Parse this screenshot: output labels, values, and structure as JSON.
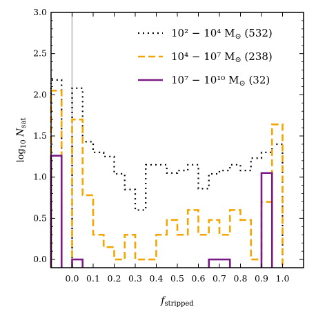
{
  "chart_data": {
    "type": "step-histogram",
    "xlabel": "f_stripped",
    "ylabel": "log10 N_sat",
    "xlim": [
      -0.1,
      1.1
    ],
    "ylim": [
      -0.1,
      3.0
    ],
    "x_ticks": [
      "0.0",
      "0.1",
      "0.2",
      "0.3",
      "0.4",
      "0.5",
      "0.6",
      "0.7",
      "0.8",
      "0.9",
      "1.0"
    ],
    "x_tick_values": [
      0.0,
      0.1,
      0.2,
      0.3,
      0.4,
      0.5,
      0.6,
      0.7,
      0.8,
      0.9,
      1.0
    ],
    "y_ticks": [
      "0.0",
      "0.5",
      "1.0",
      "1.5",
      "2.0",
      "2.5",
      "3.0"
    ],
    "y_tick_values": [
      0.0,
      0.5,
      1.0,
      1.5,
      2.0,
      2.5,
      3.0
    ],
    "reference_line_x": 0.0,
    "legend_position": "top-right",
    "bin_edges": [
      -0.1,
      -0.05,
      0.0,
      0.05,
      0.1,
      0.15,
      0.2,
      0.25,
      0.3,
      0.35,
      0.4,
      0.45,
      0.5,
      0.55,
      0.6,
      0.65,
      0.7,
      0.75,
      0.8,
      0.85,
      0.9,
      0.95,
      1.0,
      1.05
    ],
    "series": [
      {
        "name": "10^2 - 10^4 M_sun (532)",
        "legend_main": "10² − 10⁴ M",
        "legend_count": " (532)",
        "style": "dotted",
        "color": "#000000",
        "values": [
          2.18,
          null,
          2.08,
          1.43,
          1.3,
          1.25,
          1.04,
          0.85,
          0.6,
          1.15,
          1.15,
          1.05,
          1.08,
          1.15,
          0.86,
          1.04,
          1.08,
          1.15,
          1.08,
          1.23,
          1.3,
          1.4,
          null
        ]
      },
      {
        "name": "10^4 - 10^7 M_sun (238)",
        "legend_main": "10⁴ − 10⁷ M",
        "legend_count": " (238)",
        "style": "dashed",
        "color": "#f5a500",
        "values": [
          2.05,
          null,
          1.7,
          0.78,
          0.3,
          0.15,
          0.0,
          0.3,
          0.0,
          0.0,
          0.3,
          0.48,
          0.3,
          0.6,
          0.3,
          0.48,
          0.3,
          0.6,
          0.48,
          0.0,
          0.7,
          1.64,
          null
        ]
      },
      {
        "name": "10^7 - 10^10 M_sun (32)",
        "legend_main": "10⁷ − 10¹⁰ M",
        "legend_count": " (32)",
        "style": "solid",
        "color": "#7a1a86",
        "values": [
          1.26,
          null,
          0.0,
          null,
          null,
          null,
          null,
          null,
          null,
          null,
          null,
          null,
          null,
          null,
          null,
          0.0,
          0.0,
          null,
          null,
          null,
          1.05,
          null,
          null
        ]
      }
    ]
  }
}
